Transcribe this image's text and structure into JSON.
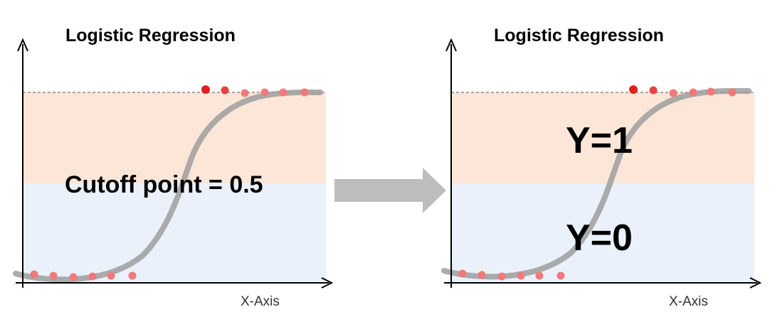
{
  "panels": [
    {
      "title": "Logistic Regression",
      "xlabel": "X-Axis",
      "annotation": "Cutoff point = 0.5"
    },
    {
      "title": "Logistic Regression",
      "xlabel": "X-Axis",
      "region_labels": {
        "upper": "Y=1",
        "lower": "Y=0"
      }
    }
  ],
  "colors": {
    "upper_band": "#FBE6D8",
    "lower_band": "#EAF1FA",
    "curve": "#9E9E9E",
    "point_dark": "#E0201C",
    "point_light": "#F07A7A",
    "arrow": "#BDBDBD",
    "axis": "#000000"
  }
}
